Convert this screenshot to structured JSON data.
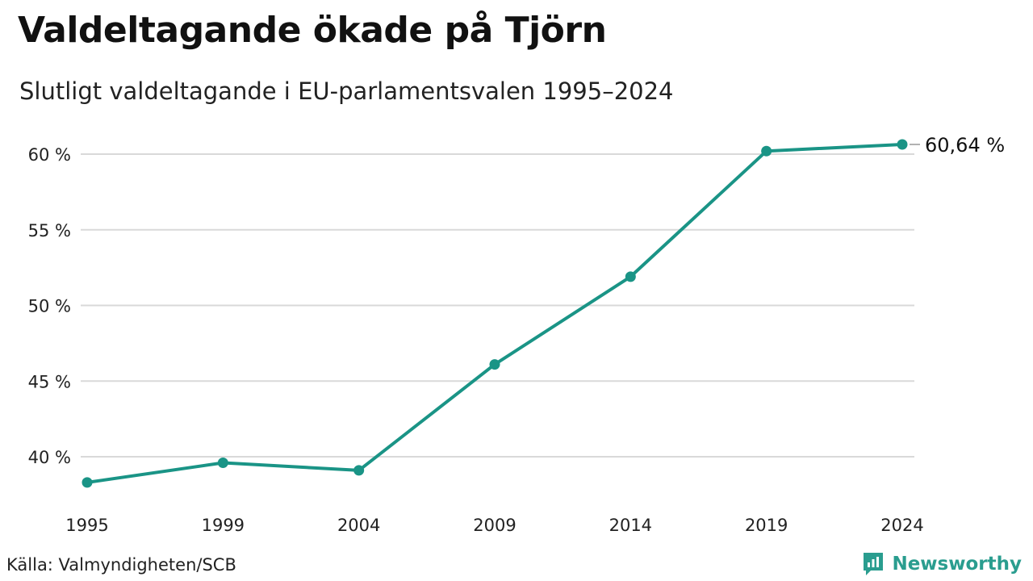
{
  "header": {
    "title": "Valdeltagande ökade på Tjörn",
    "subtitle": "Slutligt valdeltagande i EU-parlamentsvalen 1995–2024"
  },
  "footer": {
    "source": "Källa: Valmyndigheten/SCB",
    "brand": "Newsworthy"
  },
  "icons": {
    "brand": "newsworthy-logo-icon"
  },
  "colors": {
    "line": "#1a9486",
    "grid": "#d9d9d9",
    "brand": "#2a9d8f"
  },
  "chart_data": {
    "type": "line",
    "title": "Valdeltagande ökade på Tjörn",
    "subtitle": "Slutligt valdeltagande i EU-parlamentsvalen 1995–2024",
    "categories": [
      "1995",
      "1999",
      "2004",
      "2009",
      "2014",
      "2019",
      "2024"
    ],
    "series": [
      {
        "values": [
          38.3,
          39.6,
          39.1,
          46.1,
          51.9,
          60.2,
          60.64
        ]
      }
    ],
    "yticks": [
      "40 %",
      "45 %",
      "50 %",
      "55 %",
      "60 %"
    ],
    "ytick_values": [
      40,
      45,
      50,
      55,
      60
    ],
    "ylim": [
      36.5,
      61.5
    ],
    "grid": true,
    "end_label": "60,64 %"
  }
}
